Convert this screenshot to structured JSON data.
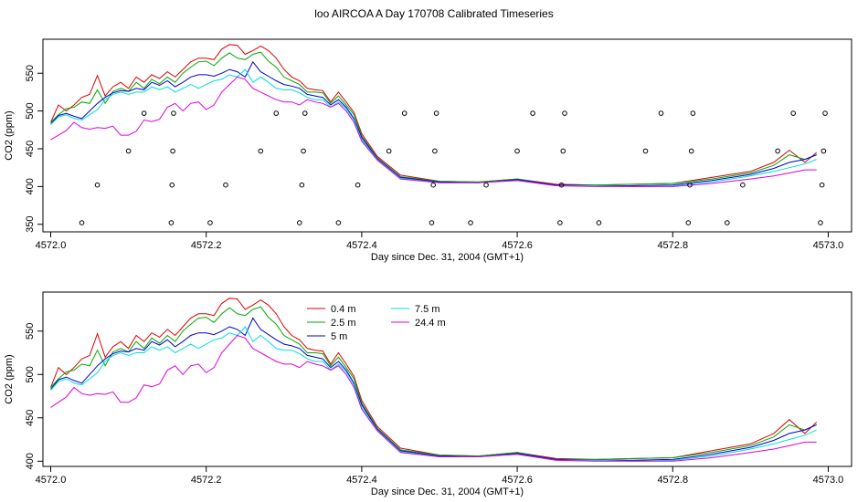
{
  "figure": {
    "title": "loo AIRCOA A  Day 170708  Calibrated Timeseries"
  },
  "chart_data": [
    {
      "type": "line",
      "xlabel": "Day since Dec. 31, 2004 (GMT+1)",
      "ylabel": "CO2 (ppm)",
      "xlim": [
        4571.99,
        4573.03
      ],
      "ylim": [
        340,
        595
      ],
      "xticks": [
        4572.0,
        4572.2,
        4572.4,
        4572.6,
        4572.8,
        4573.0
      ],
      "xtick_labels": [
        "4572.0",
        "4572.2",
        "4572.4",
        "4572.6",
        "4572.8",
        "4573.0"
      ],
      "yticks": [
        350,
        400,
        450,
        500,
        550
      ],
      "ytick_labels": [
        "350",
        "400",
        "450",
        "500",
        "550"
      ],
      "colors": {
        "0.4 m": "#dd0000",
        "2.5 m": "#00aa00",
        "5 m": "#0000cc",
        "7.5 m": "#00dddd",
        "24.4 m": "#dd00dd"
      },
      "series": [
        {
          "key": "0.4 m",
          "x": [
            4572.0,
            4572.01,
            4572.02,
            4572.03,
            4572.04,
            4572.05,
            4572.06,
            4572.07,
            4572.08,
            4572.09,
            4572.1,
            4572.11,
            4572.12,
            4572.13,
            4572.14,
            4572.15,
            4572.16,
            4572.17,
            4572.18,
            4572.19,
            4572.2,
            4572.21,
            4572.22,
            4572.23,
            4572.24,
            4572.25,
            4572.26,
            4572.27,
            4572.28,
            4572.29,
            4572.3,
            4572.31,
            4572.32,
            4572.33,
            4572.34,
            4572.35,
            4572.36,
            4572.37,
            4572.38,
            4572.39,
            4572.4,
            4572.42,
            4572.45,
            4572.5,
            4572.55,
            4572.6,
            4572.65,
            4572.7,
            4572.75,
            4572.8,
            4572.85,
            4572.9,
            4572.93,
            4572.95,
            4572.97,
            4572.985
          ],
          "y": [
            485,
            508,
            500,
            508,
            518,
            522,
            547,
            520,
            532,
            538,
            530,
            545,
            538,
            548,
            543,
            552,
            545,
            555,
            565,
            570,
            570,
            568,
            582,
            588,
            587,
            575,
            580,
            586,
            580,
            570,
            555,
            545,
            540,
            530,
            528,
            527,
            512,
            525,
            512,
            498,
            470,
            440,
            415,
            407,
            406,
            410,
            403,
            402,
            403,
            404,
            412,
            420,
            432,
            448,
            432,
            445
          ]
        },
        {
          "key": "2.5 m",
          "x": [
            4572.0,
            4572.01,
            4572.02,
            4572.03,
            4572.04,
            4572.05,
            4572.06,
            4572.07,
            4572.08,
            4572.09,
            4572.1,
            4572.11,
            4572.12,
            4572.13,
            4572.14,
            4572.15,
            4572.16,
            4572.17,
            4572.18,
            4572.19,
            4572.2,
            4572.21,
            4572.22,
            4572.23,
            4572.24,
            4572.25,
            4572.26,
            4572.27,
            4572.28,
            4572.29,
            4572.3,
            4572.31,
            4572.32,
            4572.33,
            4572.34,
            4572.35,
            4572.36,
            4572.37,
            4572.38,
            4572.39,
            4572.4,
            4572.42,
            4572.45,
            4572.5,
            4572.55,
            4572.6,
            4572.65,
            4572.7,
            4572.75,
            4572.8,
            4572.85,
            4572.9,
            4572.93,
            4572.95,
            4572.97,
            4572.985
          ],
          "y": [
            485,
            495,
            503,
            505,
            512,
            510,
            528,
            510,
            526,
            530,
            526,
            538,
            530,
            542,
            536,
            545,
            538,
            550,
            558,
            565,
            566,
            560,
            570,
            577,
            570,
            568,
            575,
            578,
            566,
            558,
            545,
            540,
            535,
            525,
            525,
            524,
            510,
            520,
            508,
            495,
            467,
            438,
            413,
            407,
            406,
            410,
            402,
            402,
            403,
            404,
            410,
            418,
            428,
            442,
            436,
            442
          ]
        },
        {
          "key": "5 m",
          "x": [
            4572.0,
            4572.01,
            4572.02,
            4572.03,
            4572.04,
            4572.05,
            4572.06,
            4572.07,
            4572.08,
            4572.09,
            4572.1,
            4572.11,
            4572.12,
            4572.13,
            4572.14,
            4572.15,
            4572.16,
            4572.17,
            4572.18,
            4572.19,
            4572.2,
            4572.21,
            4572.22,
            4572.23,
            4572.24,
            4572.25,
            4572.26,
            4572.27,
            4572.28,
            4572.29,
            4572.3,
            4572.31,
            4572.32,
            4572.33,
            4572.34,
            4572.35,
            4572.36,
            4572.37,
            4572.38,
            4572.39,
            4572.4,
            4572.42,
            4572.45,
            4572.5,
            4572.55,
            4572.6,
            4572.65,
            4572.7,
            4572.75,
            4572.8,
            4572.85,
            4572.9,
            4572.93,
            4572.95,
            4572.97,
            4572.985
          ],
          "y": [
            483,
            494,
            497,
            493,
            490,
            500,
            510,
            518,
            524,
            527,
            526,
            530,
            528,
            538,
            534,
            540,
            532,
            538,
            545,
            548,
            548,
            546,
            550,
            555,
            552,
            545,
            565,
            552,
            546,
            540,
            535,
            533,
            530,
            522,
            520,
            518,
            508,
            515,
            505,
            490,
            465,
            437,
            412,
            406,
            405,
            409,
            402,
            401,
            401,
            402,
            408,
            416,
            424,
            432,
            436,
            442
          ]
        },
        {
          "key": "7.5 m",
          "x": [
            4572.0,
            4572.01,
            4572.02,
            4572.03,
            4572.04,
            4572.05,
            4572.06,
            4572.07,
            4572.08,
            4572.09,
            4572.1,
            4572.11,
            4572.12,
            4572.13,
            4572.14,
            4572.15,
            4572.16,
            4572.17,
            4572.18,
            4572.19,
            4572.2,
            4572.21,
            4572.22,
            4572.23,
            4572.24,
            4572.25,
            4572.26,
            4572.27,
            4572.28,
            4572.29,
            4572.3,
            4572.31,
            4572.32,
            4572.33,
            4572.34,
            4572.35,
            4572.36,
            4572.37,
            4572.38,
            4572.39,
            4572.4,
            4572.42,
            4572.45,
            4572.5,
            4572.55,
            4572.6,
            4572.65,
            4572.7,
            4572.75,
            4572.8,
            4572.85,
            4572.9,
            4572.93,
            4572.95,
            4572.97,
            4572.985
          ],
          "y": [
            482,
            492,
            495,
            490,
            488,
            495,
            502,
            515,
            522,
            525,
            522,
            525,
            525,
            532,
            528,
            532,
            525,
            530,
            535,
            530,
            535,
            540,
            542,
            548,
            545,
            555,
            538,
            545,
            538,
            530,
            528,
            528,
            524,
            518,
            515,
            515,
            505,
            512,
            503,
            488,
            462,
            436,
            411,
            405,
            405,
            408,
            401,
            401,
            400,
            401,
            406,
            414,
            420,
            425,
            430,
            436
          ]
        },
        {
          "key": "24.4 m",
          "x": [
            4572.0,
            4572.01,
            4572.02,
            4572.03,
            4572.04,
            4572.05,
            4572.06,
            4572.07,
            4572.08,
            4572.09,
            4572.1,
            4572.11,
            4572.12,
            4572.13,
            4572.14,
            4572.15,
            4572.16,
            4572.17,
            4572.18,
            4572.19,
            4572.2,
            4572.21,
            4572.22,
            4572.23,
            4572.24,
            4572.25,
            4572.26,
            4572.27,
            4572.28,
            4572.29,
            4572.3,
            4572.31,
            4572.32,
            4572.33,
            4572.34,
            4572.35,
            4572.36,
            4572.37,
            4572.38,
            4572.39,
            4572.4,
            4572.42,
            4572.45,
            4572.5,
            4572.55,
            4572.6,
            4572.65,
            4572.7,
            4572.75,
            4572.8,
            4572.85,
            4572.9,
            4572.93,
            4572.95,
            4572.97,
            4572.985
          ],
          "y": [
            462,
            468,
            474,
            485,
            478,
            476,
            478,
            477,
            480,
            468,
            468,
            473,
            488,
            486,
            489,
            505,
            510,
            500,
            510,
            512,
            502,
            508,
            525,
            535,
            545,
            542,
            530,
            525,
            520,
            515,
            512,
            512,
            508,
            515,
            512,
            510,
            505,
            510,
            500,
            485,
            460,
            435,
            410,
            405,
            405,
            408,
            401,
            400,
            400,
            400,
            404,
            410,
            414,
            418,
            422,
            422
          ]
        }
      ],
      "scatter": {
        "x": [
          4572.04,
          4572.06,
          4572.1,
          4572.12,
          4572.155,
          4572.156,
          4572.157,
          4572.158,
          4572.205,
          4572.225,
          4572.27,
          4572.29,
          4572.32,
          4572.323,
          4572.325,
          4572.327,
          4572.37,
          4572.395,
          4572.435,
          4572.455,
          4572.49,
          4572.492,
          4572.494,
          4572.496,
          4572.54,
          4572.56,
          4572.6,
          4572.62,
          4572.655,
          4572.657,
          4572.659,
          4572.661,
          4572.705,
          4572.765,
          4572.785,
          4572.82,
          4572.822,
          4572.824,
          4572.826,
          4572.87,
          4572.89,
          4572.935,
          4572.955,
          4572.99,
          4572.992,
          4572.994,
          4572.996
        ],
        "y": [
          352,
          402,
          447,
          497,
          352,
          402,
          447,
          497,
          352,
          402,
          447,
          497,
          352,
          402,
          447,
          497,
          352,
          402,
          447,
          497,
          352,
          402,
          447,
          497,
          352,
          402,
          447,
          497,
          352,
          402,
          447,
          497,
          352,
          447,
          497,
          352,
          402,
          447,
          497,
          352,
          402,
          447,
          497,
          352,
          402,
          447,
          497
        ]
      }
    },
    {
      "type": "line",
      "xlabel": "Day since Dec. 31, 2004 (GMT+1)",
      "ylabel": "CO2 (ppm)",
      "xlim": [
        4571.99,
        4573.03
      ],
      "ylim": [
        394,
        595
      ],
      "xticks": [
        4572.0,
        4572.2,
        4572.4,
        4572.6,
        4572.8,
        4573.0
      ],
      "xtick_labels": [
        "4572.0",
        "4572.2",
        "4572.4",
        "4572.6",
        "4572.8",
        "4573.0"
      ],
      "yticks": [
        400,
        450,
        500,
        550
      ],
      "ytick_labels": [
        "400",
        "450",
        "500",
        "550"
      ],
      "legend": {
        "placement": "top-center",
        "entries": [
          "0.4 m",
          "2.5 m",
          "5 m",
          "7.5 m",
          "24.4 m"
        ]
      },
      "series_from_panel": 0
    }
  ]
}
